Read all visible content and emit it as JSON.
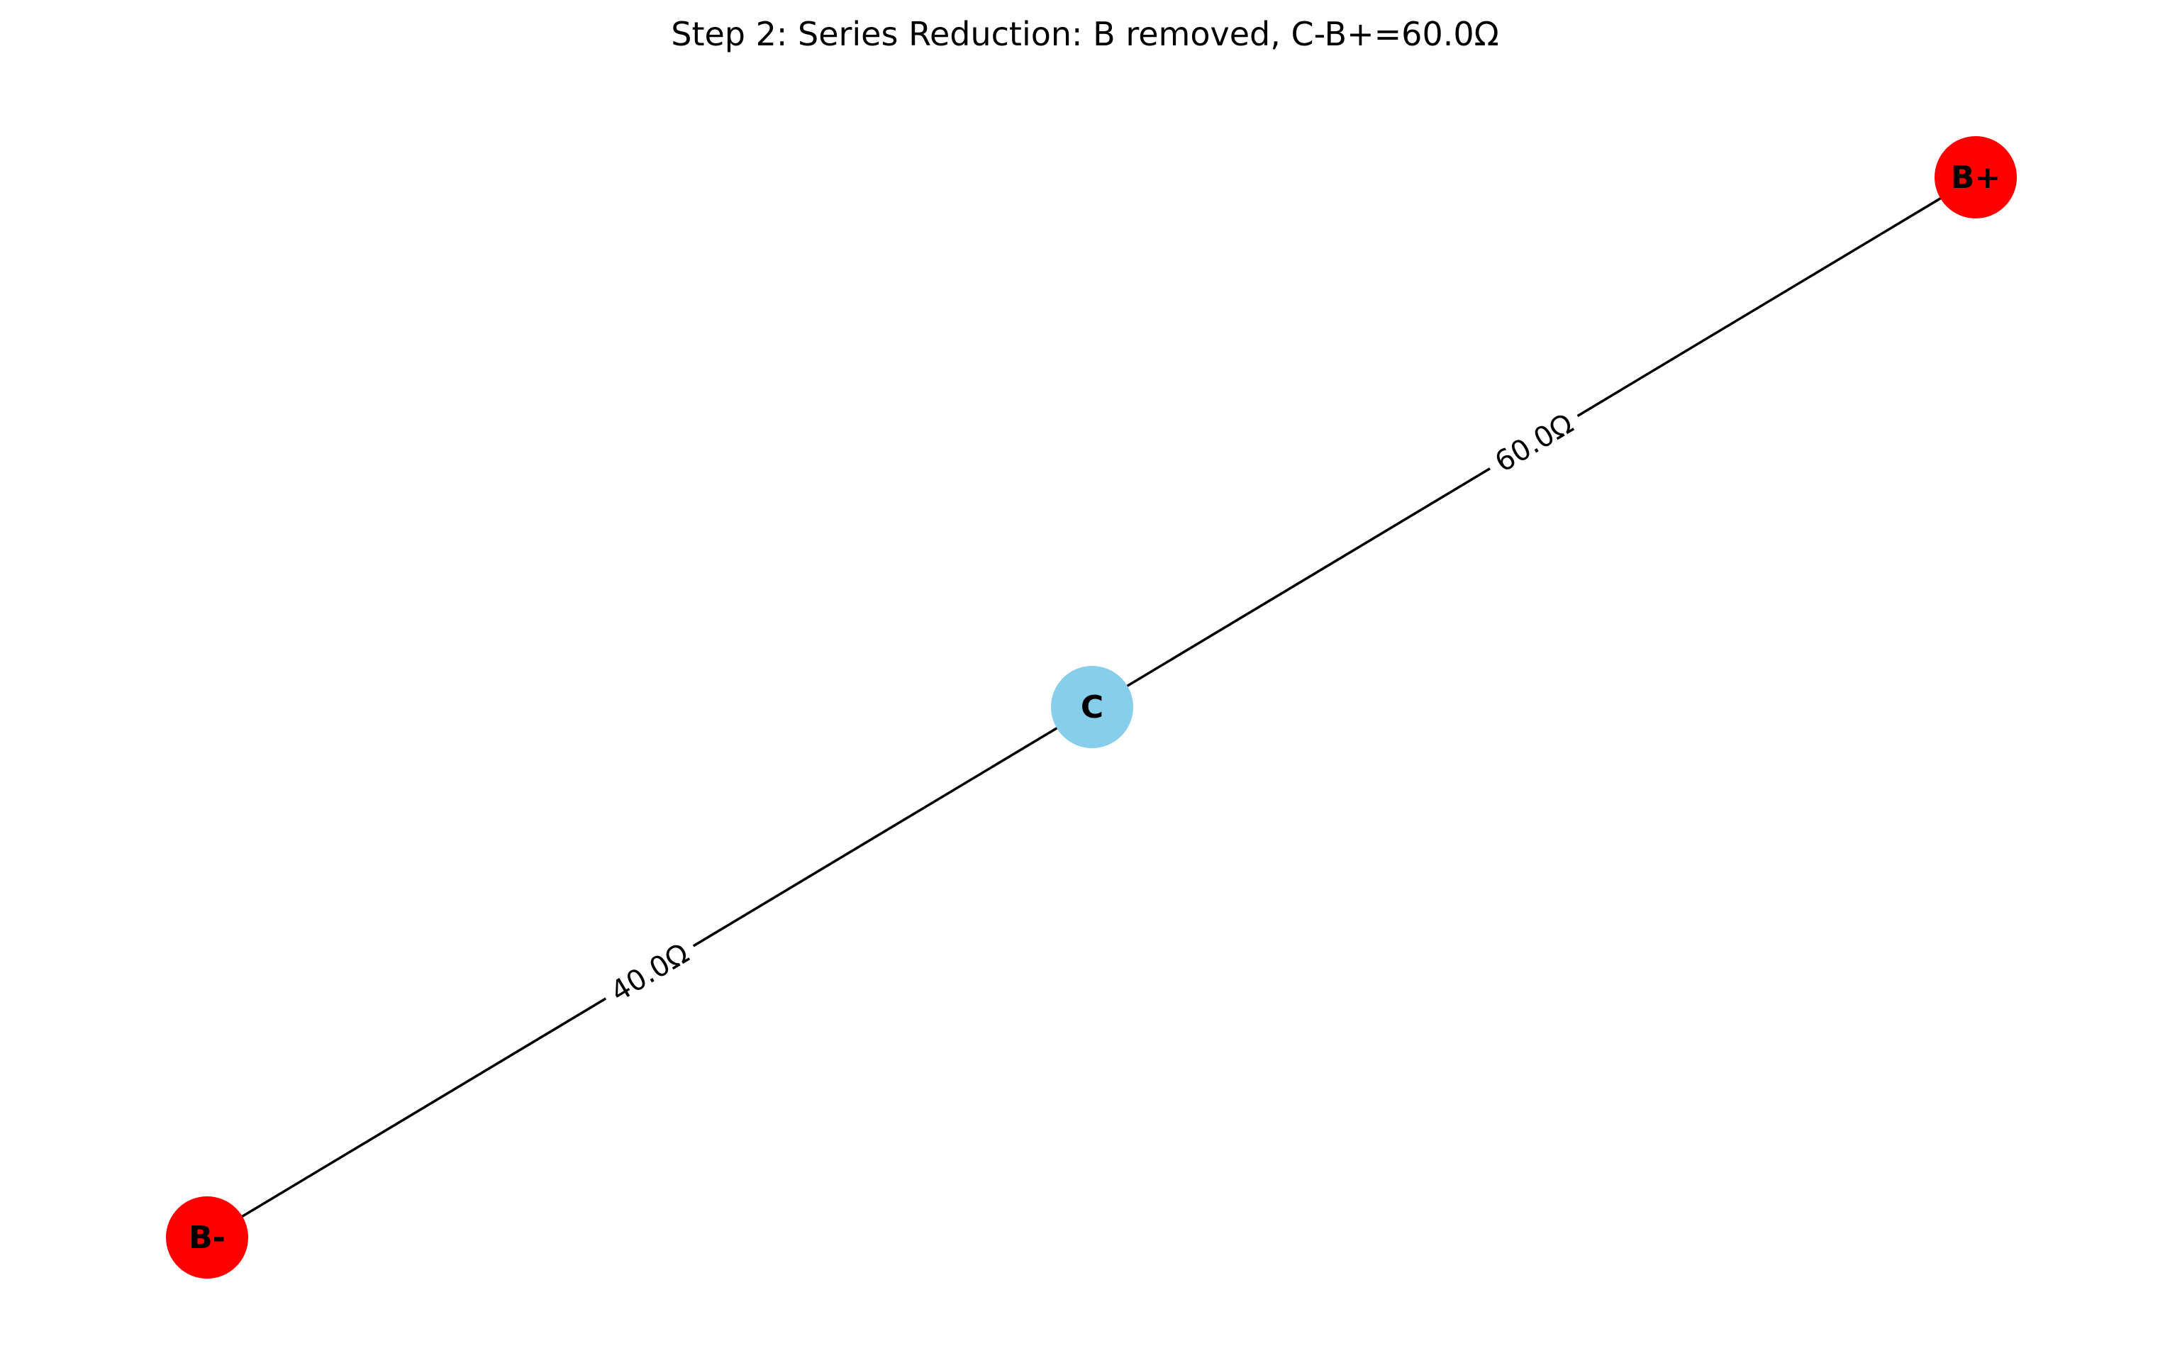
{
  "title": "Step 2: Series Reduction: B removed, C-B+=60.0Ω",
  "nodes": [
    {
      "id": "B+",
      "label": "B+",
      "color": "#ff0000"
    },
    {
      "id": "C",
      "label": "C",
      "color": "#87ceeb"
    },
    {
      "id": "B-",
      "label": "B-",
      "color": "#ff0000"
    }
  ],
  "edges": [
    {
      "from": "C",
      "to": "B+",
      "label": "60.0Ω"
    },
    {
      "from": "B-",
      "to": "C",
      "label": "40.0Ω"
    }
  ]
}
